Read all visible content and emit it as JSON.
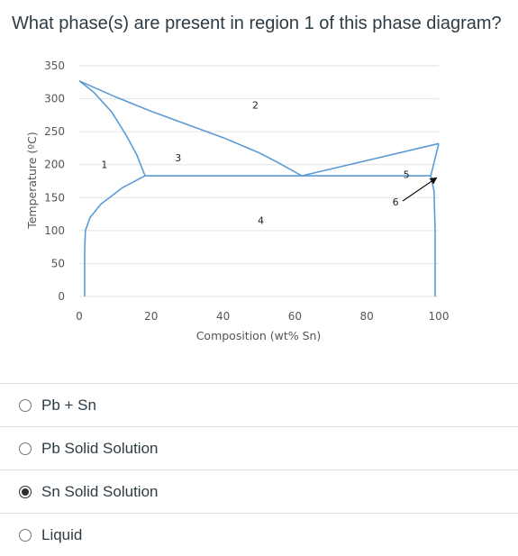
{
  "question": {
    "text": "What phase(s) are present in region 1 of this phase diagram?"
  },
  "chart_data": {
    "type": "line",
    "title": "",
    "xlabel": "Composition (wt% Sn)",
    "ylabel": "Temperature (ºC)",
    "xlim": [
      0,
      100
    ],
    "ylim": [
      0,
      350
    ],
    "xticks": [
      0,
      20,
      40,
      60,
      80,
      100
    ],
    "yticks": [
      0,
      50,
      100,
      150,
      200,
      250,
      300,
      350
    ],
    "grid": true,
    "line_color": "#5b9bd5",
    "series": [
      {
        "values": [
          [
            0,
            327
          ],
          [
            10,
            303
          ],
          [
            20,
            281
          ],
          [
            30,
            261
          ],
          [
            40,
            241
          ],
          [
            50,
            218
          ],
          [
            55,
            204
          ],
          [
            61.9,
            183
          ]
        ]
      },
      {
        "values": [
          [
            0,
            327
          ],
          [
            4,
            310
          ],
          [
            9,
            280
          ],
          [
            13,
            245
          ],
          [
            16,
            215
          ],
          [
            18.3,
            183
          ]
        ]
      },
      {
        "values": [
          [
            18.3,
            183
          ],
          [
            12,
            165
          ],
          [
            6,
            140
          ],
          [
            3,
            120
          ],
          [
            1.7,
            100
          ],
          [
            1.5,
            70
          ],
          [
            1.5,
            0
          ]
        ]
      },
      {
        "values": [
          [
            18.3,
            183
          ],
          [
            97.8,
            183
          ]
        ]
      },
      {
        "values": [
          [
            61.9,
            183
          ],
          [
            100,
            232
          ]
        ]
      },
      {
        "values": [
          [
            97.8,
            183
          ],
          [
            100,
            232
          ]
        ]
      },
      {
        "values": [
          [
            97.8,
            183
          ],
          [
            98.7,
            160
          ],
          [
            99,
            100
          ],
          [
            99,
            0
          ]
        ]
      }
    ],
    "region_labels": [
      {
        "text": "1",
        "x": 7,
        "y": 195
      },
      {
        "text": "2",
        "x": 49,
        "y": 285
      },
      {
        "text": "3",
        "x": 27.5,
        "y": 205
      },
      {
        "text": "4",
        "x": 50.5,
        "y": 110
      },
      {
        "text": "5",
        "x": 91,
        "y": 180
      },
      {
        "text": "6",
        "x": 88,
        "y": 138
      }
    ],
    "arrow": {
      "from": [
        90,
        145
      ],
      "to": [
        99.4,
        180
      ]
    }
  },
  "answers": [
    {
      "label": "Pb + Sn",
      "selected": false
    },
    {
      "label": "Pb Solid Solution",
      "selected": false
    },
    {
      "label": "Sn Solid Solution",
      "selected": true
    },
    {
      "label": "Liquid",
      "selected": false
    }
  ]
}
